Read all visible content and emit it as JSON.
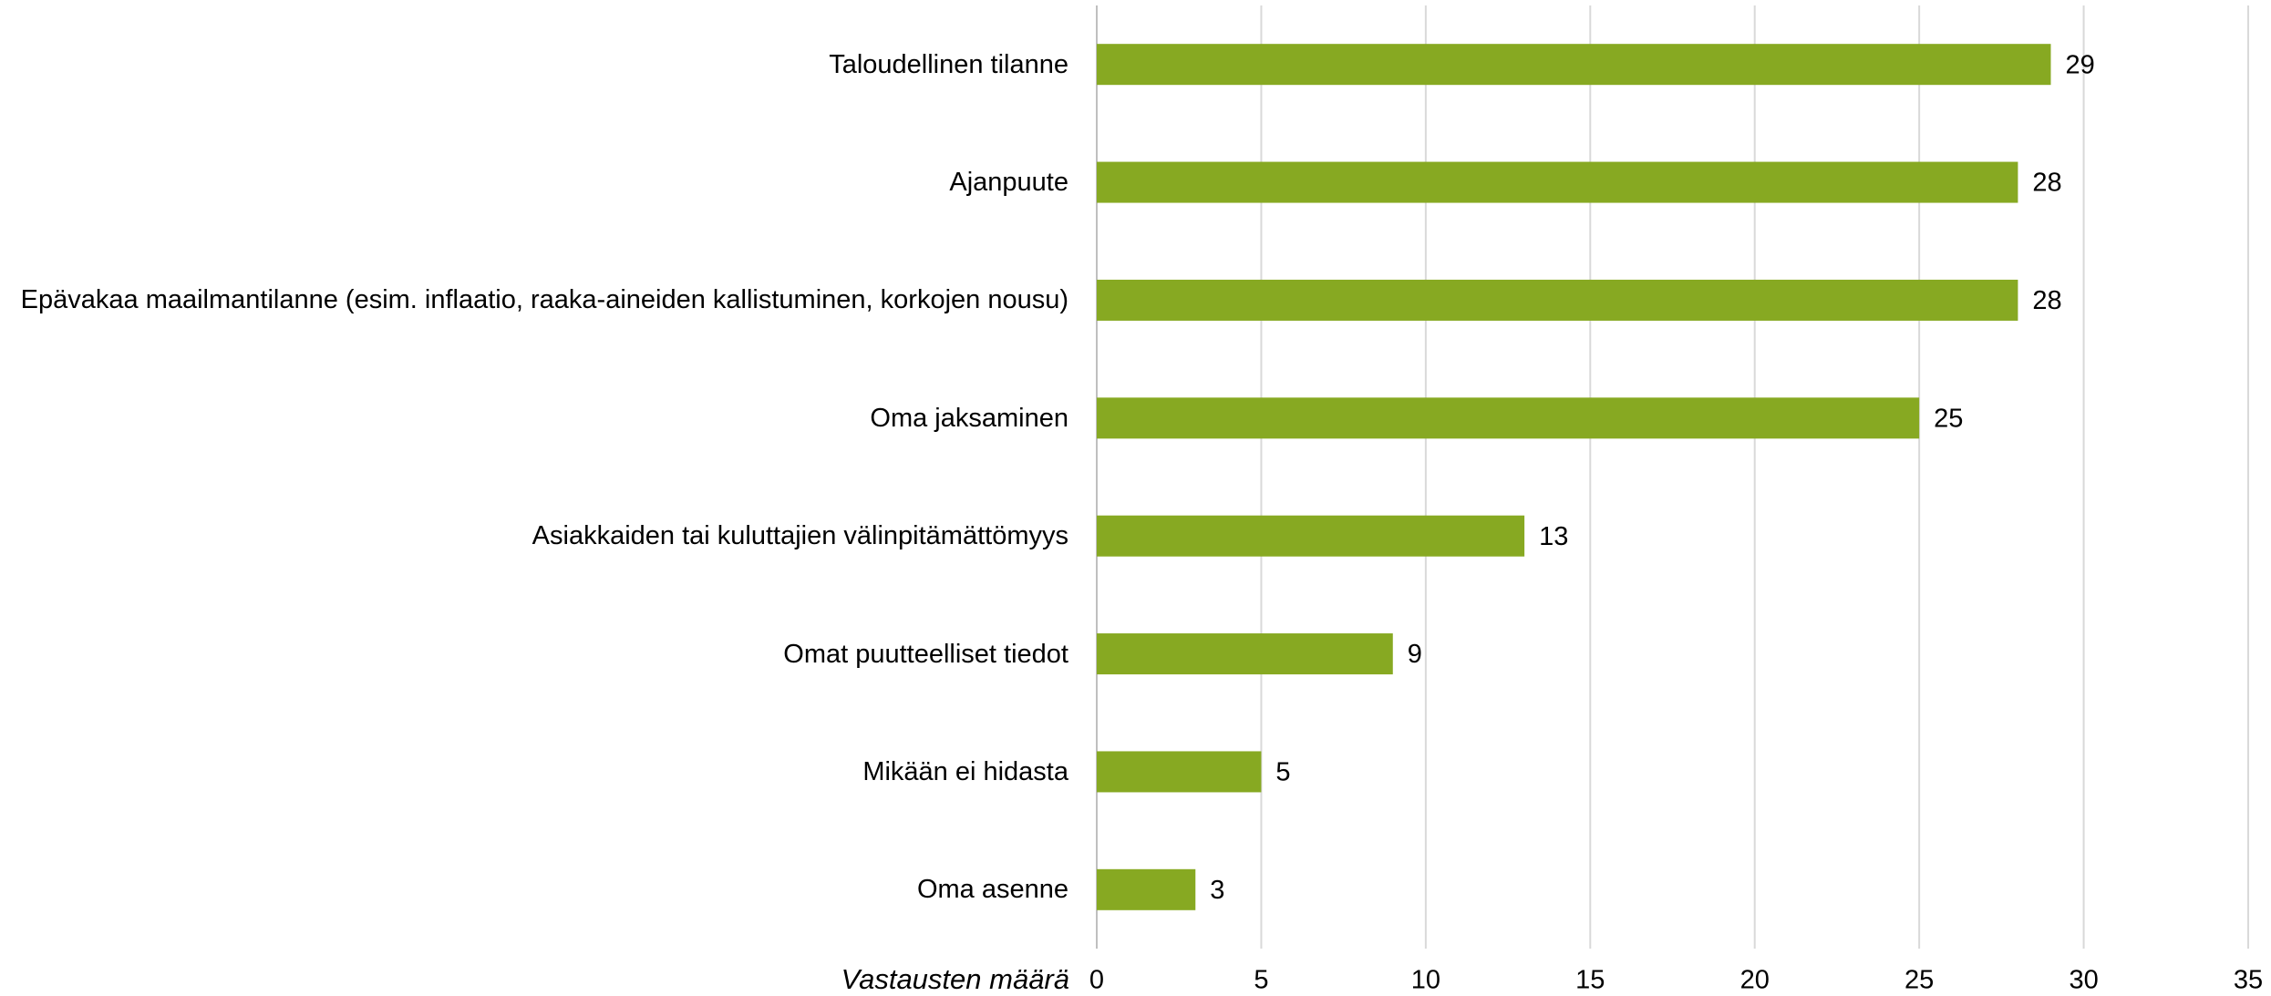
{
  "chart_data": {
    "type": "bar",
    "orientation": "horizontal",
    "categories": [
      "Taloudellinen tilanne",
      "Ajanpuute",
      "Epävakaa maailmantilanne (esim. inflaatio, raaka-aineiden kallistuminen, korkojen nousu)",
      "Oma jaksaminen",
      "Asiakkaiden tai kuluttajien välinpitämättömyys",
      "Omat puutteelliset tiedot",
      "Mikään ei hidasta",
      "Oma asenne"
    ],
    "values": [
      29,
      28,
      28,
      25,
      13,
      9,
      5,
      3
    ],
    "color": "#87a922",
    "xlabel": "Vastausten määrä",
    "xlim": [
      0,
      35
    ],
    "xticks": [
      0,
      5,
      10,
      15,
      20,
      25,
      30,
      35
    ],
    "grid": true
  }
}
